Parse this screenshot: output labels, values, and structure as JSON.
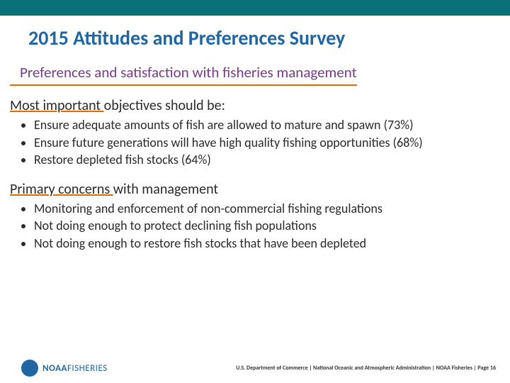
{
  "colors": {
    "top_bar": "#0b7179",
    "title": "#1f66a3",
    "subtitle": "#7a3a8a",
    "subtitle_underline": "#e06c00",
    "section_underline": "#e06c00",
    "body_text": "#2a2a2a",
    "footer_blue": "#1f66a3",
    "footer_text": "#333333",
    "noaa_swoosh": "#ffffff"
  },
  "sizes": {
    "title_fontsize": "28px",
    "subtitle_fontsize": "21px",
    "section_fontsize": "20px",
    "bullet_fontsize": "18px",
    "footer_fontsize": "8px",
    "logo_fontsize": "13px"
  },
  "title": "2015 Attitudes and Preferences Survey",
  "subtitle": "Preferences and satisfaction with fisheries management",
  "section1": {
    "underlined": "Most important ",
    "rest": "objectives should be:",
    "bullets": [
      "Ensure adequate amounts of fish are allowed to mature and spawn (73%)",
      "Ensure future generations will have high quality fishing opportunities (68%)",
      "Restore depleted fish stocks (64%)"
    ]
  },
  "section2": {
    "underlined": "Primary concerns ",
    "rest": "with management",
    "bullets": [
      "Monitoring and enforcement of non-commercial fishing regulations",
      "Not doing enough to protect declining fish populations",
      "Not doing enough to restore fish stocks that have been depleted"
    ]
  },
  "footer": {
    "logo_bold": "NOAA",
    "logo_light": "FISHERIES",
    "text": "U.S. Department of Commerce  |  National Oceanic and Atmospheric Administration  |  NOAA Fisheries  |  Page 16"
  }
}
